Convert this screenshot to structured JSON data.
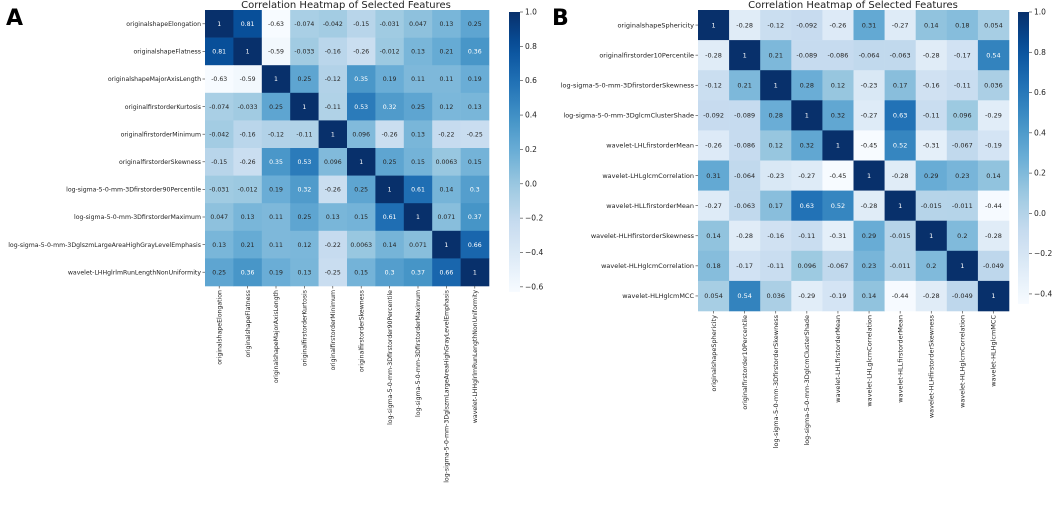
{
  "chart_data": [
    {
      "type": "heatmap",
      "panel_label": "A",
      "title": "Correlation Heatmap of Selected Features",
      "features": [
        "originalshapeElongation",
        "originalshapeFlatness",
        "originalshapeMajorAxisLength",
        "originalfirstorderKurtosis",
        "originalfirstorderMinimum",
        "originalfirstorderSkewness",
        "log-sigma-5-0-mm-3Dfirstorder90Percentile",
        "log-sigma-5-0-mm-3DfirstorderMaximum",
        "log-sigma-5-0-mm-3DglszmLargeAreaHighGrayLevelEmphasis",
        "wavelet-LHHglrlmRunLengthNonUniformity"
      ],
      "cell_labels": [
        [
          "1",
          "0.81",
          "-0.63",
          "-0.074",
          "-0.042",
          "-0.15",
          "-0.031",
          "0.047",
          "0.13",
          "0.25"
        ],
        [
          "0.81",
          "1",
          "-0.59",
          "-0.033",
          "-0.16",
          "-0.26",
          "-0.012",
          "0.13",
          "0.21",
          "0.36"
        ],
        [
          "-0.63",
          "-0.59",
          "1",
          "0.25",
          "-0.12",
          "0.35",
          "0.19",
          "0.11",
          "0.11",
          "0.19"
        ],
        [
          "-0.074",
          "-0.033",
          "0.25",
          "1",
          "-0.11",
          "0.53",
          "0.32",
          "0.25",
          "0.12",
          "0.13"
        ],
        [
          "-0.042",
          "-0.16",
          "-0.12",
          "-0.11",
          "1",
          "0.096",
          "-0.26",
          "0.13",
          "-0.22",
          "-0.25"
        ],
        [
          "-0.15",
          "-0.26",
          "0.35",
          "0.53",
          "0.096",
          "1",
          "0.25",
          "0.15",
          "0.0063",
          "0.15"
        ],
        [
          "-0.031",
          "-0.012",
          "0.19",
          "0.32",
          "-0.26",
          "0.25",
          "1",
          "0.61",
          "0.14",
          "0.3"
        ],
        [
          "0.047",
          "0.13",
          "0.11",
          "0.25",
          "0.13",
          "0.15",
          "0.61",
          "1",
          "0.071",
          "0.37"
        ],
        [
          "0.13",
          "0.21",
          "0.11",
          "0.12",
          "-0.22",
          "0.0063",
          "0.14",
          "0.071",
          "1",
          "0.66"
        ],
        [
          "0.25",
          "0.36",
          "0.19",
          "0.13",
          "-0.25",
          "0.15",
          "0.3",
          "0.37",
          "0.66",
          "1"
        ]
      ],
      "color_range": [
        -0.63,
        1
      ],
      "colorbar_ticks": [
        "1.0",
        "0.8",
        "0.6",
        "0.4",
        "0.2",
        "0.0",
        "−0.2",
        "−0.4",
        "−0.6"
      ],
      "colorbar_tick_values": [
        1.0,
        0.8,
        0.6,
        0.4,
        0.2,
        0.0,
        -0.2,
        -0.4,
        -0.6
      ]
    },
    {
      "type": "heatmap",
      "panel_label": "B",
      "title": "Correlation Heatmap of Selected Features",
      "features": [
        "originalshapeSphericity",
        "originalfirstorder10Percentile",
        "log-sigma-5-0-mm-3DfirstorderSkewness",
        "log-sigma-5-0-mm-3DglcmClusterShade",
        "wavelet-LHLfirstorderMean",
        "wavelet-LHLglcmCorrelation",
        "wavelet-HLLfirstorderMean",
        "wavelet-HLHfirstorderSkewness",
        "wavelet-HLHglcmCorrelation",
        "wavelet-HLHglcmMCC"
      ],
      "cell_labels": [
        [
          "1",
          "-0.28",
          "-0.12",
          "-0.092",
          "-0.26",
          "0.31",
          "-0.27",
          "0.14",
          "0.18",
          "0.054"
        ],
        [
          "-0.28",
          "1",
          "0.21",
          "-0.089",
          "-0.086",
          "-0.064",
          "-0.063",
          "-0.28",
          "-0.17",
          "0.54"
        ],
        [
          "-0.12",
          "0.21",
          "1",
          "0.28",
          "0.12",
          "-0.23",
          "0.17",
          "-0.16",
          "-0.11",
          "0.036"
        ],
        [
          "-0.092",
          "-0.089",
          "0.28",
          "1",
          "0.32",
          "-0.27",
          "0.63",
          "-0.11",
          "0.096",
          "-0.29"
        ],
        [
          "-0.26",
          "-0.086",
          "0.12",
          "0.32",
          "1",
          "-0.45",
          "0.52",
          "-0.31",
          "-0.067",
          "-0.19"
        ],
        [
          "0.31",
          "-0.064",
          "-0.23",
          "-0.27",
          "-0.45",
          "1",
          "-0.28",
          "0.29",
          "0.23",
          "0.14"
        ],
        [
          "-0.27",
          "-0.063",
          "0.17",
          "0.63",
          "0.52",
          "-0.28",
          "1",
          "-0.015",
          "-0.011",
          "-0.44"
        ],
        [
          "0.14",
          "-0.28",
          "-0.16",
          "-0.11",
          "-0.31",
          "0.29",
          "-0.015",
          "1",
          "0.2",
          "-0.28"
        ],
        [
          "0.18",
          "-0.17",
          "-0.11",
          "0.096",
          "-0.067",
          "0.23",
          "-0.011",
          "0.2",
          "1",
          "-0.049"
        ],
        [
          "0.054",
          "0.54",
          "0.036",
          "-0.29",
          "-0.19",
          "0.14",
          "-0.44",
          "-0.28",
          "-0.049",
          "1"
        ]
      ],
      "color_range": [
        -0.45,
        1
      ],
      "colorbar_ticks": [
        "1.0",
        "0.8",
        "0.6",
        "0.4",
        "0.2",
        "0.0",
        "−0.2",
        "−0.4"
      ],
      "colorbar_tick_values": [
        1.0,
        0.8,
        0.6,
        0.4,
        0.2,
        0.0,
        -0.2,
        -0.4
      ]
    }
  ],
  "colors": {
    "ramp": [
      "#f7fbff",
      "#deebf7",
      "#c6dbef",
      "#9ecae1",
      "#6baed6",
      "#4292c6",
      "#2171b5",
      "#08519c",
      "#08306b"
    ],
    "text_dark": "#262626",
    "text_light": "#ffffff"
  }
}
